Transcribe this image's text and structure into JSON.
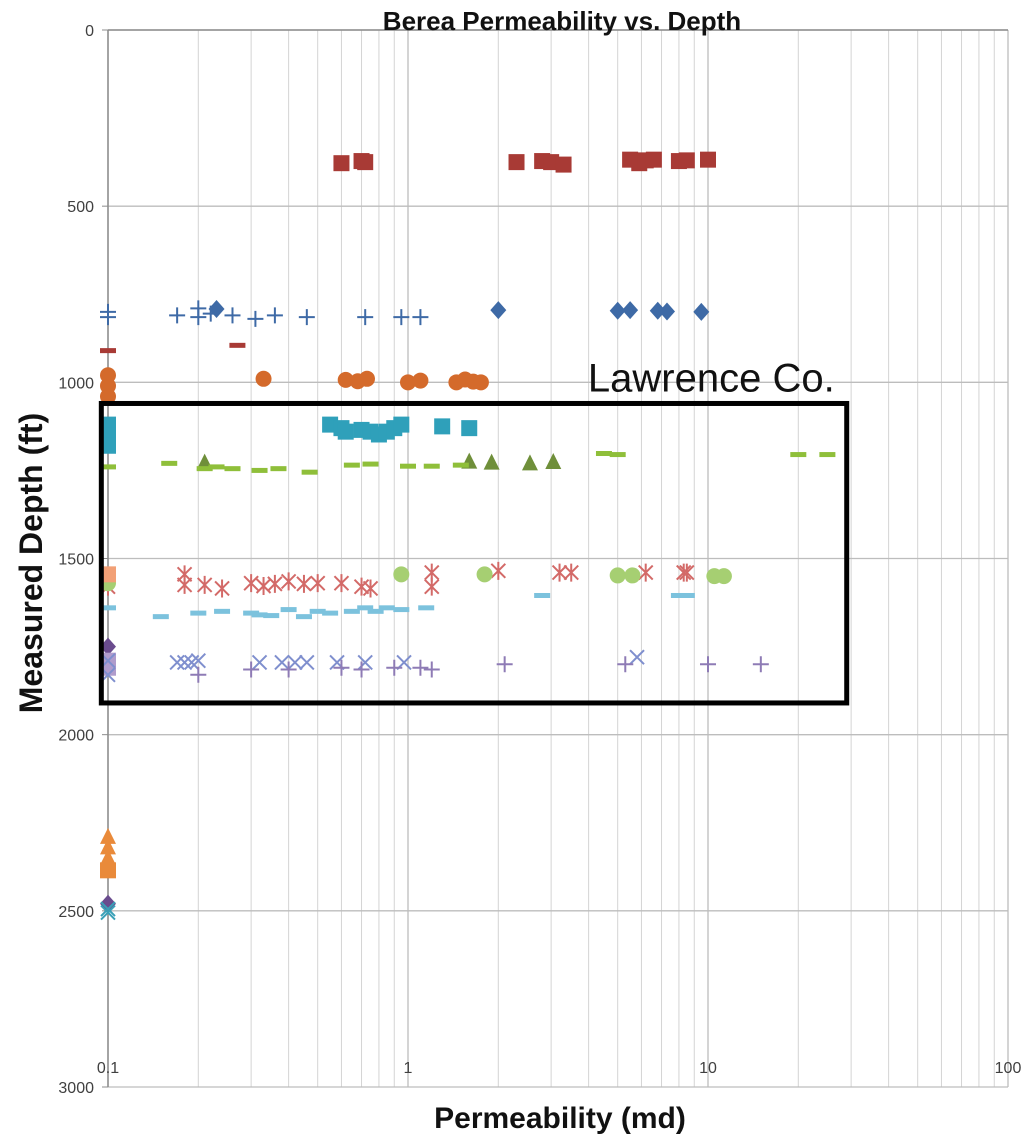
{
  "chart_data": {
    "type": "scatter",
    "title": "Berea Permeability vs. Depth",
    "xlabel": "Permeability (md)",
    "ylabel": "Measured Depth (ft)",
    "xscale": "log",
    "xlim": [
      0.1,
      100
    ],
    "ylim": [
      0,
      3000
    ],
    "y_inverted": true,
    "grid": true,
    "legend": "none",
    "x_tick_labels": [
      "0.1",
      "1",
      "10",
      "100"
    ],
    "x_tick_values": [
      0.1,
      1,
      10,
      100
    ],
    "y_tick_labels": [
      "0",
      "500",
      "1000",
      "1500",
      "2000",
      "2500",
      "3000"
    ],
    "y_tick_values": [
      0,
      500,
      1000,
      1500,
      2000,
      2500,
      3000
    ],
    "annotations": [
      {
        "text": "Lawrence Co.",
        "box": {
          "x0": 0.095,
          "x1": 29,
          "y0": 1060,
          "y1": 1910
        }
      }
    ],
    "series": [
      {
        "marker": "square",
        "color": "#a83a35",
        "points": [
          [
            0.6,
            378
          ],
          [
            0.7,
            372
          ],
          [
            0.72,
            375
          ],
          [
            2.3,
            375
          ],
          [
            2.8,
            372
          ],
          [
            3.0,
            375
          ],
          [
            3.3,
            382
          ],
          [
            5.5,
            368
          ],
          [
            5.9,
            378
          ],
          [
            6.2,
            370
          ],
          [
            6.6,
            368
          ],
          [
            8.0,
            372
          ],
          [
            8.5,
            370
          ],
          [
            10.0,
            368
          ]
        ]
      },
      {
        "marker": "diamond",
        "color": "#3e6aa6",
        "points": [
          [
            0.23,
            792
          ],
          [
            2.0,
            795
          ],
          [
            5.0,
            797
          ],
          [
            5.5,
            795
          ],
          [
            6.8,
            797
          ],
          [
            7.3,
            799
          ],
          [
            9.5,
            800
          ]
        ]
      },
      {
        "marker": "plus",
        "color": "#3e6aa6",
        "points": [
          [
            0.1,
            800
          ],
          [
            0.1,
            815
          ],
          [
            0.17,
            810
          ],
          [
            0.2,
            790
          ],
          [
            0.2,
            815
          ],
          [
            0.22,
            805
          ],
          [
            0.26,
            810
          ],
          [
            0.31,
            820
          ],
          [
            0.36,
            810
          ],
          [
            0.46,
            815
          ],
          [
            0.72,
            815
          ],
          [
            0.95,
            815
          ],
          [
            1.1,
            815
          ]
        ]
      },
      {
        "marker": "dash",
        "color": "#a83a35",
        "points": [
          [
            0.1,
            910
          ],
          [
            0.27,
            895
          ]
        ]
      },
      {
        "marker": "circle",
        "color": "#d46a2b",
        "points": [
          [
            0.1,
            980
          ],
          [
            0.1,
            1010
          ],
          [
            0.1,
            1040
          ],
          [
            0.33,
            990
          ],
          [
            0.62,
            993
          ],
          [
            0.68,
            997
          ],
          [
            0.73,
            990
          ],
          [
            1.0,
            1000
          ],
          [
            1.1,
            995
          ],
          [
            1.45,
            1000
          ],
          [
            1.55,
            992
          ],
          [
            1.65,
            998
          ],
          [
            1.75,
            1000
          ]
        ]
      },
      {
        "marker": "square",
        "color": "#2fa0ba",
        "points": [
          [
            0.1,
            1120
          ],
          [
            0.1,
            1150
          ],
          [
            0.1,
            1180
          ],
          [
            0.55,
            1120
          ],
          [
            0.6,
            1130
          ],
          [
            0.62,
            1140
          ],
          [
            0.7,
            1135
          ],
          [
            0.75,
            1140
          ],
          [
            0.8,
            1148
          ],
          [
            0.85,
            1140
          ],
          [
            0.9,
            1130
          ],
          [
            0.95,
            1120
          ],
          [
            1.3,
            1125
          ],
          [
            1.6,
            1130
          ]
        ]
      },
      {
        "marker": "triangle",
        "color": "#6f8f3a",
        "points": [
          [
            0.21,
            1228
          ],
          [
            1.6,
            1225
          ],
          [
            1.9,
            1228
          ],
          [
            2.55,
            1230
          ],
          [
            3.05,
            1226
          ]
        ]
      },
      {
        "marker": "dash",
        "color": "#8fbf3a",
        "points": [
          [
            0.1,
            1240
          ],
          [
            0.16,
            1230
          ],
          [
            0.21,
            1245
          ],
          [
            0.23,
            1240
          ],
          [
            0.26,
            1245
          ],
          [
            0.32,
            1250
          ],
          [
            0.37,
            1245
          ],
          [
            0.47,
            1255
          ],
          [
            0.65,
            1235
          ],
          [
            0.75,
            1232
          ],
          [
            1.0,
            1238
          ],
          [
            1.2,
            1238
          ],
          [
            1.5,
            1235
          ],
          [
            4.5,
            1202
          ],
          [
            5.0,
            1205
          ],
          [
            20.0,
            1205
          ],
          [
            25.0,
            1205
          ]
        ]
      },
      {
        "marker": "asterisk",
        "color": "#d36a68",
        "points": [
          [
            0.1,
            1580
          ],
          [
            0.18,
            1545
          ],
          [
            0.18,
            1575
          ],
          [
            0.21,
            1575
          ],
          [
            0.24,
            1585
          ],
          [
            0.3,
            1570
          ],
          [
            0.33,
            1578
          ],
          [
            0.36,
            1572
          ],
          [
            0.4,
            1565
          ],
          [
            0.45,
            1572
          ],
          [
            0.5,
            1570
          ],
          [
            0.6,
            1570
          ],
          [
            0.7,
            1580
          ],
          [
            0.75,
            1585
          ],
          [
            1.2,
            1540
          ],
          [
            1.2,
            1580
          ],
          [
            2.0,
            1535
          ],
          [
            3.2,
            1540
          ],
          [
            3.5,
            1540
          ],
          [
            6.2,
            1540
          ],
          [
            8.3,
            1540
          ],
          [
            8.5,
            1540
          ]
        ]
      },
      {
        "marker": "circle",
        "color": "#a6cf72",
        "points": [
          [
            0.1,
            1570
          ],
          [
            0.95,
            1545
          ],
          [
            1.8,
            1545
          ],
          [
            5.0,
            1548
          ],
          [
            5.6,
            1548
          ],
          [
            10.5,
            1550
          ],
          [
            11.3,
            1550
          ]
        ]
      },
      {
        "marker": "square",
        "color": "#f2a076",
        "points": [
          [
            0.1,
            1545
          ]
        ]
      },
      {
        "marker": "dash",
        "color": "#7cc2dd",
        "points": [
          [
            0.1,
            1640
          ],
          [
            0.15,
            1665
          ],
          [
            0.2,
            1655
          ],
          [
            0.24,
            1650
          ],
          [
            0.3,
            1655
          ],
          [
            0.32,
            1660
          ],
          [
            0.35,
            1662
          ],
          [
            0.4,
            1645
          ],
          [
            0.45,
            1665
          ],
          [
            0.5,
            1650
          ],
          [
            0.55,
            1655
          ],
          [
            0.65,
            1650
          ],
          [
            0.72,
            1640
          ],
          [
            0.78,
            1650
          ],
          [
            0.85,
            1640
          ],
          [
            0.95,
            1645
          ],
          [
            1.15,
            1640
          ],
          [
            2.8,
            1605
          ],
          [
            8.0,
            1605
          ],
          [
            8.5,
            1605
          ]
        ]
      },
      {
        "marker": "diamond",
        "color": "#6a4c8e",
        "points": [
          [
            0.1,
            1750
          ]
        ]
      },
      {
        "marker": "square",
        "color": "#b09ccc",
        "points": [
          [
            0.1,
            1790
          ],
          [
            0.1,
            1810
          ]
        ]
      },
      {
        "marker": "x",
        "color": "#7f8fce",
        "points": [
          [
            0.1,
            1790
          ],
          [
            0.1,
            1830
          ],
          [
            0.17,
            1795
          ],
          [
            0.18,
            1795
          ],
          [
            0.19,
            1795
          ],
          [
            0.2,
            1790
          ],
          [
            0.32,
            1795
          ],
          [
            0.38,
            1795
          ],
          [
            0.42,
            1795
          ],
          [
            0.46,
            1795
          ],
          [
            0.58,
            1795
          ],
          [
            0.72,
            1795
          ],
          [
            0.97,
            1795
          ],
          [
            5.8,
            1780
          ]
        ]
      },
      {
        "marker": "plus",
        "color": "#8e7bb5",
        "points": [
          [
            0.2,
            1830
          ],
          [
            0.3,
            1815
          ],
          [
            0.4,
            1815
          ],
          [
            0.6,
            1810
          ],
          [
            0.7,
            1815
          ],
          [
            0.9,
            1810
          ],
          [
            1.1,
            1810
          ],
          [
            1.2,
            1815
          ],
          [
            2.1,
            1800
          ],
          [
            5.3,
            1800
          ],
          [
            10.0,
            1800
          ],
          [
            15.0,
            1800
          ]
        ]
      },
      {
        "marker": "triangle",
        "color": "#e98a3a",
        "points": [
          [
            0.1,
            2290
          ],
          [
            0.1,
            2320
          ],
          [
            0.1,
            2350
          ]
        ]
      },
      {
        "marker": "square",
        "color": "#e98a3a",
        "points": [
          [
            0.1,
            2385
          ]
        ]
      },
      {
        "marker": "diamond",
        "color": "#6a4c8e",
        "points": [
          [
            0.1,
            2480
          ]
        ]
      },
      {
        "marker": "x",
        "color": "#3aa0b7",
        "points": [
          [
            0.1,
            2495
          ],
          [
            0.1,
            2505
          ]
        ]
      }
    ]
  }
}
